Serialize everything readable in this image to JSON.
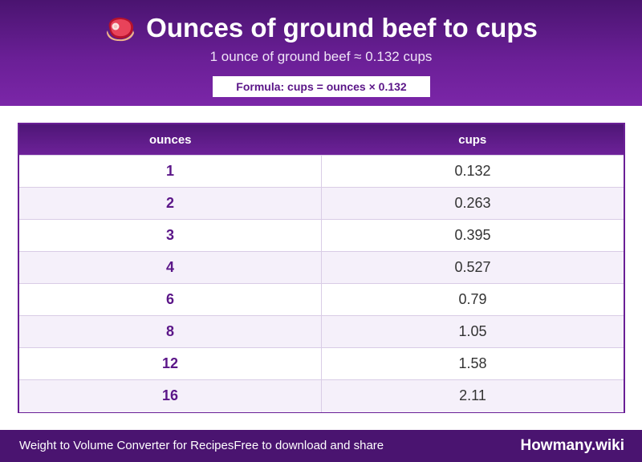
{
  "header": {
    "icon": "steak-icon",
    "title": "Ounces of ground beef to cups",
    "subtitle": "1 ounce of ground beef ≈ 0.132 cups",
    "formula": "Formula: cups = ounces × 0.132"
  },
  "table": {
    "columns": [
      "ounces",
      "cups"
    ],
    "rows": [
      {
        "ounces": "1",
        "cups": "0.132"
      },
      {
        "ounces": "2",
        "cups": "0.263"
      },
      {
        "ounces": "3",
        "cups": "0.395"
      },
      {
        "ounces": "4",
        "cups": "0.527"
      },
      {
        "ounces": "6",
        "cups": "0.79"
      },
      {
        "ounces": "8",
        "cups": "1.05"
      },
      {
        "ounces": "12",
        "cups": "1.58"
      },
      {
        "ounces": "16",
        "cups": "2.11"
      }
    ]
  },
  "footer": {
    "left_text": "Weight to Volume Converter for RecipesFree to download and share",
    "brand": "Howmany.wiki"
  },
  "colors": {
    "brand_purple": "#6a1f96",
    "dark_purple": "#4a1470",
    "row_alt": "#f5f0fa"
  }
}
